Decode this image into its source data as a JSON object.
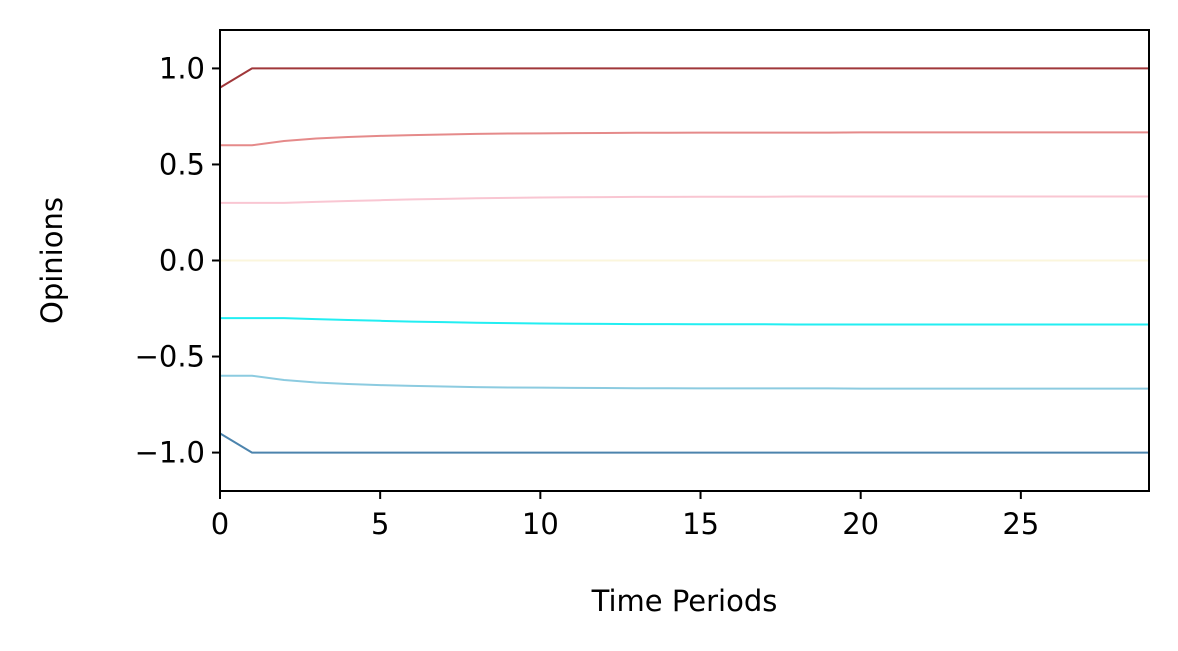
{
  "chart_data": {
    "type": "line",
    "title": "",
    "xlabel": "Time Periods",
    "ylabel": "Opinions",
    "xlim": [
      0,
      29
    ],
    "ylim": [
      -1.2,
      1.2
    ],
    "grid": false,
    "legend": "none",
    "x_ticks": [
      {
        "value": 0,
        "label": "0"
      },
      {
        "value": 5,
        "label": "5"
      },
      {
        "value": 10,
        "label": "10"
      },
      {
        "value": 15,
        "label": "15"
      },
      {
        "value": 20,
        "label": "20"
      },
      {
        "value": 25,
        "label": "25"
      }
    ],
    "y_ticks": [
      {
        "value": 1.0,
        "label": "1.0"
      },
      {
        "value": 0.5,
        "label": "0.5"
      },
      {
        "value": 0.0,
        "label": "0.0"
      },
      {
        "value": -0.5,
        "label": "−0.5"
      },
      {
        "value": -1.0,
        "label": "−1.0"
      }
    ],
    "x": [
      0,
      1,
      2,
      3,
      4,
      5,
      6,
      7,
      8,
      9,
      10,
      11,
      12,
      13,
      14,
      15,
      16,
      17,
      18,
      19,
      20,
      21,
      22,
      23,
      24,
      25,
      26,
      27,
      28,
      29
    ],
    "series": [
      {
        "color": "#a0373a",
        "values": [
          0.9,
          1,
          1,
          1,
          1,
          1,
          1,
          1,
          1,
          1,
          1,
          1,
          1,
          1,
          1,
          1,
          1,
          1,
          1,
          1,
          1,
          1,
          1,
          1,
          1,
          1,
          1,
          1,
          1,
          1
        ]
      },
      {
        "color": "#e58a8a",
        "values": [
          0.6,
          0.6,
          0.622,
          0.635,
          0.643,
          0.649,
          0.653,
          0.656,
          0.659,
          0.661,
          0.662,
          0.663,
          0.664,
          0.665,
          0.665,
          0.666,
          0.666,
          0.666,
          0.666,
          0.666,
          0.667,
          0.667,
          0.667,
          0.667,
          0.667,
          0.667,
          0.667,
          0.667,
          0.667,
          0.667
        ]
      },
      {
        "color": "#f9c6d2",
        "values": [
          0.3,
          0.3,
          0.3,
          0.305,
          0.31,
          0.314,
          0.318,
          0.321,
          0.324,
          0.326,
          0.328,
          0.329,
          0.33,
          0.331,
          0.331,
          0.332,
          0.332,
          0.332,
          0.333,
          0.333,
          0.333,
          0.333,
          0.333,
          0.333,
          0.333,
          0.333,
          0.333,
          0.333,
          0.333,
          0.333
        ]
      },
      {
        "color": "#fbf6dc",
        "values": [
          0,
          0,
          0,
          0,
          0,
          0,
          0,
          0,
          0,
          0,
          0,
          0,
          0,
          0,
          0,
          0,
          0,
          0,
          0,
          0,
          0,
          0,
          0,
          0,
          0,
          0,
          0,
          0,
          0,
          0
        ]
      },
      {
        "color": "#22eef2",
        "values": [
          -0.3,
          -0.3,
          -0.3,
          -0.305,
          -0.31,
          -0.314,
          -0.318,
          -0.321,
          -0.324,
          -0.326,
          -0.328,
          -0.329,
          -0.33,
          -0.331,
          -0.331,
          -0.332,
          -0.332,
          -0.332,
          -0.333,
          -0.333,
          -0.333,
          -0.333,
          -0.333,
          -0.333,
          -0.333,
          -0.333,
          -0.333,
          -0.333,
          -0.333,
          -0.333
        ]
      },
      {
        "color": "#8ccbe0",
        "values": [
          -0.6,
          -0.6,
          -0.622,
          -0.635,
          -0.643,
          -0.649,
          -0.653,
          -0.656,
          -0.659,
          -0.661,
          -0.662,
          -0.663,
          -0.664,
          -0.665,
          -0.665,
          -0.666,
          -0.666,
          -0.666,
          -0.666,
          -0.666,
          -0.667,
          -0.667,
          -0.667,
          -0.667,
          -0.667,
          -0.667,
          -0.667,
          -0.667,
          -0.667,
          -0.667
        ]
      },
      {
        "color": "#4c84ad",
        "values": [
          -0.9,
          -1,
          -1,
          -1,
          -1,
          -1,
          -1,
          -1,
          -1,
          -1,
          -1,
          -1,
          -1,
          -1,
          -1,
          -1,
          -1,
          -1,
          -1,
          -1,
          -1,
          -1,
          -1,
          -1,
          -1,
          -1,
          -1,
          -1,
          -1,
          -1
        ]
      }
    ]
  }
}
